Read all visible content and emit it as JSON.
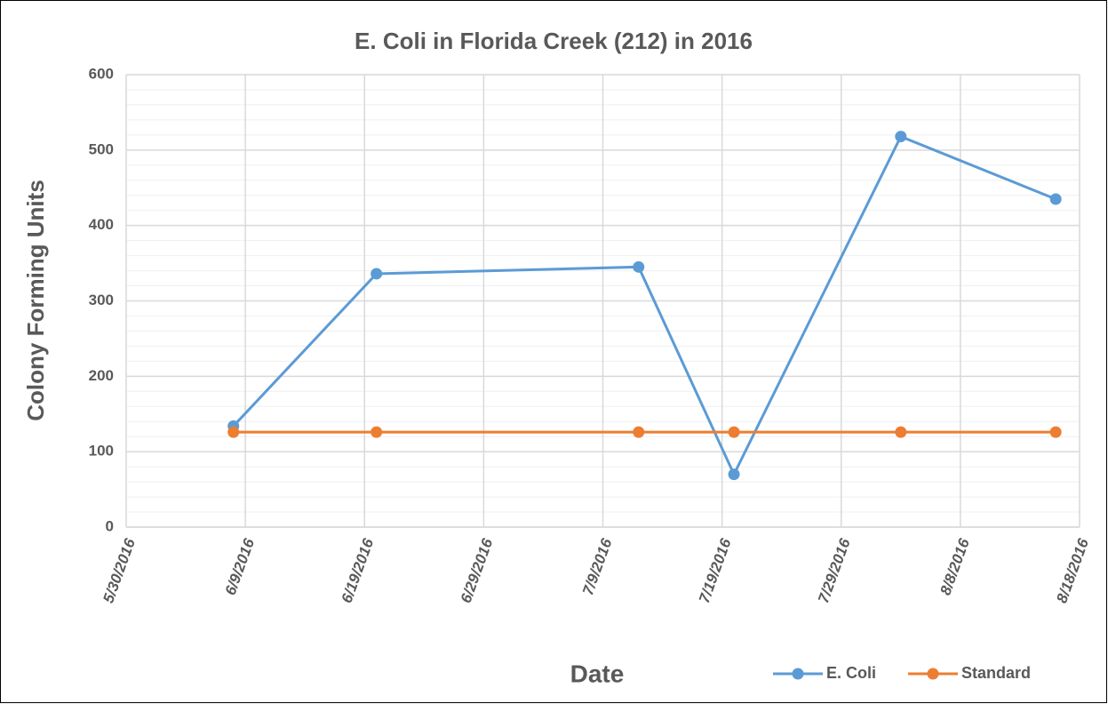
{
  "chart_data": {
    "type": "line",
    "title": "E. Coli in Florida Creek (212) in 2016",
    "x_label": "Date",
    "y_label": "Colony Forming Units",
    "x": [
      "6/8/2016",
      "6/20/2016",
      "7/12/2016",
      "7/20/2016",
      "8/3/2016",
      "8/16/2016"
    ],
    "series": [
      {
        "name": "E. Coli",
        "color": "#5b9bd5",
        "values": [
          134,
          336,
          345,
          70,
          518,
          435
        ]
      },
      {
        "name": "Standard",
        "color": "#ed7d31",
        "values": [
          126,
          126,
          126,
          126,
          126,
          126
        ]
      }
    ],
    "xlim": [
      "5/30/2016",
      "8/18/2016"
    ],
    "xticks": [
      "5/30/2016",
      "6/9/2016",
      "6/19/2016",
      "6/29/2016",
      "7/9/2016",
      "7/19/2016",
      "7/29/2016",
      "8/8/2016",
      "8/18/2016"
    ],
    "ylim": [
      0,
      600
    ],
    "yticks": [
      0,
      100,
      200,
      300,
      400,
      500,
      600
    ],
    "grid": true,
    "legend": "bottom-right"
  }
}
